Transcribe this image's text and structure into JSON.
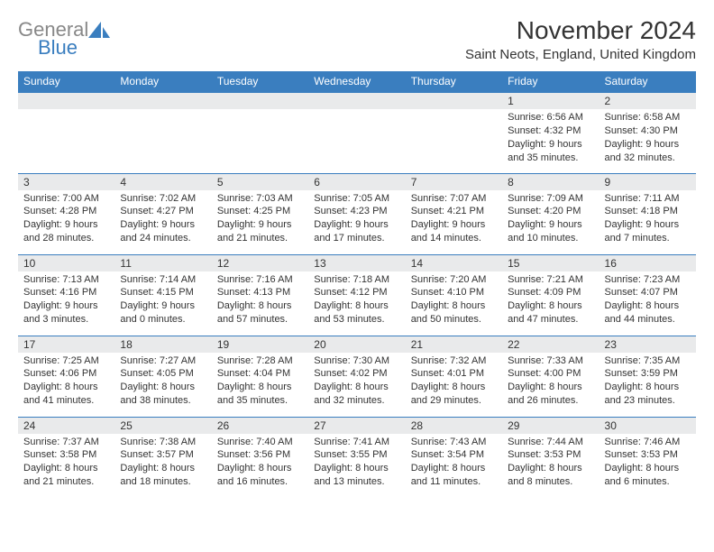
{
  "logo": {
    "word1": "General",
    "word2": "Blue",
    "gray_color": "#888888",
    "blue_color": "#3a7ebf"
  },
  "title": "November 2024",
  "location": "Saint Neots, England, United Kingdom",
  "colors": {
    "header_bg": "#3a7ebf",
    "header_text": "#ffffff",
    "daynum_bg": "#e9eaeb",
    "border": "#3a7ebf",
    "body_text": "#333333"
  },
  "weekdays": [
    "Sunday",
    "Monday",
    "Tuesday",
    "Wednesday",
    "Thursday",
    "Friday",
    "Saturday"
  ],
  "weeks": [
    [
      {
        "n": "",
        "sunrise": "",
        "sunset": "",
        "daylight": ""
      },
      {
        "n": "",
        "sunrise": "",
        "sunset": "",
        "daylight": ""
      },
      {
        "n": "",
        "sunrise": "",
        "sunset": "",
        "daylight": ""
      },
      {
        "n": "",
        "sunrise": "",
        "sunset": "",
        "daylight": ""
      },
      {
        "n": "",
        "sunrise": "",
        "sunset": "",
        "daylight": ""
      },
      {
        "n": "1",
        "sunrise": "Sunrise: 6:56 AM",
        "sunset": "Sunset: 4:32 PM",
        "daylight": "Daylight: 9 hours and 35 minutes."
      },
      {
        "n": "2",
        "sunrise": "Sunrise: 6:58 AM",
        "sunset": "Sunset: 4:30 PM",
        "daylight": "Daylight: 9 hours and 32 minutes."
      }
    ],
    [
      {
        "n": "3",
        "sunrise": "Sunrise: 7:00 AM",
        "sunset": "Sunset: 4:28 PM",
        "daylight": "Daylight: 9 hours and 28 minutes."
      },
      {
        "n": "4",
        "sunrise": "Sunrise: 7:02 AM",
        "sunset": "Sunset: 4:27 PM",
        "daylight": "Daylight: 9 hours and 24 minutes."
      },
      {
        "n": "5",
        "sunrise": "Sunrise: 7:03 AM",
        "sunset": "Sunset: 4:25 PM",
        "daylight": "Daylight: 9 hours and 21 minutes."
      },
      {
        "n": "6",
        "sunrise": "Sunrise: 7:05 AM",
        "sunset": "Sunset: 4:23 PM",
        "daylight": "Daylight: 9 hours and 17 minutes."
      },
      {
        "n": "7",
        "sunrise": "Sunrise: 7:07 AM",
        "sunset": "Sunset: 4:21 PM",
        "daylight": "Daylight: 9 hours and 14 minutes."
      },
      {
        "n": "8",
        "sunrise": "Sunrise: 7:09 AM",
        "sunset": "Sunset: 4:20 PM",
        "daylight": "Daylight: 9 hours and 10 minutes."
      },
      {
        "n": "9",
        "sunrise": "Sunrise: 7:11 AM",
        "sunset": "Sunset: 4:18 PM",
        "daylight": "Daylight: 9 hours and 7 minutes."
      }
    ],
    [
      {
        "n": "10",
        "sunrise": "Sunrise: 7:13 AM",
        "sunset": "Sunset: 4:16 PM",
        "daylight": "Daylight: 9 hours and 3 minutes."
      },
      {
        "n": "11",
        "sunrise": "Sunrise: 7:14 AM",
        "sunset": "Sunset: 4:15 PM",
        "daylight": "Daylight: 9 hours and 0 minutes."
      },
      {
        "n": "12",
        "sunrise": "Sunrise: 7:16 AM",
        "sunset": "Sunset: 4:13 PM",
        "daylight": "Daylight: 8 hours and 57 minutes."
      },
      {
        "n": "13",
        "sunrise": "Sunrise: 7:18 AM",
        "sunset": "Sunset: 4:12 PM",
        "daylight": "Daylight: 8 hours and 53 minutes."
      },
      {
        "n": "14",
        "sunrise": "Sunrise: 7:20 AM",
        "sunset": "Sunset: 4:10 PM",
        "daylight": "Daylight: 8 hours and 50 minutes."
      },
      {
        "n": "15",
        "sunrise": "Sunrise: 7:21 AM",
        "sunset": "Sunset: 4:09 PM",
        "daylight": "Daylight: 8 hours and 47 minutes."
      },
      {
        "n": "16",
        "sunrise": "Sunrise: 7:23 AM",
        "sunset": "Sunset: 4:07 PM",
        "daylight": "Daylight: 8 hours and 44 minutes."
      }
    ],
    [
      {
        "n": "17",
        "sunrise": "Sunrise: 7:25 AM",
        "sunset": "Sunset: 4:06 PM",
        "daylight": "Daylight: 8 hours and 41 minutes."
      },
      {
        "n": "18",
        "sunrise": "Sunrise: 7:27 AM",
        "sunset": "Sunset: 4:05 PM",
        "daylight": "Daylight: 8 hours and 38 minutes."
      },
      {
        "n": "19",
        "sunrise": "Sunrise: 7:28 AM",
        "sunset": "Sunset: 4:04 PM",
        "daylight": "Daylight: 8 hours and 35 minutes."
      },
      {
        "n": "20",
        "sunrise": "Sunrise: 7:30 AM",
        "sunset": "Sunset: 4:02 PM",
        "daylight": "Daylight: 8 hours and 32 minutes."
      },
      {
        "n": "21",
        "sunrise": "Sunrise: 7:32 AM",
        "sunset": "Sunset: 4:01 PM",
        "daylight": "Daylight: 8 hours and 29 minutes."
      },
      {
        "n": "22",
        "sunrise": "Sunrise: 7:33 AM",
        "sunset": "Sunset: 4:00 PM",
        "daylight": "Daylight: 8 hours and 26 minutes."
      },
      {
        "n": "23",
        "sunrise": "Sunrise: 7:35 AM",
        "sunset": "Sunset: 3:59 PM",
        "daylight": "Daylight: 8 hours and 23 minutes."
      }
    ],
    [
      {
        "n": "24",
        "sunrise": "Sunrise: 7:37 AM",
        "sunset": "Sunset: 3:58 PM",
        "daylight": "Daylight: 8 hours and 21 minutes."
      },
      {
        "n": "25",
        "sunrise": "Sunrise: 7:38 AM",
        "sunset": "Sunset: 3:57 PM",
        "daylight": "Daylight: 8 hours and 18 minutes."
      },
      {
        "n": "26",
        "sunrise": "Sunrise: 7:40 AM",
        "sunset": "Sunset: 3:56 PM",
        "daylight": "Daylight: 8 hours and 16 minutes."
      },
      {
        "n": "27",
        "sunrise": "Sunrise: 7:41 AM",
        "sunset": "Sunset: 3:55 PM",
        "daylight": "Daylight: 8 hours and 13 minutes."
      },
      {
        "n": "28",
        "sunrise": "Sunrise: 7:43 AM",
        "sunset": "Sunset: 3:54 PM",
        "daylight": "Daylight: 8 hours and 11 minutes."
      },
      {
        "n": "29",
        "sunrise": "Sunrise: 7:44 AM",
        "sunset": "Sunset: 3:53 PM",
        "daylight": "Daylight: 8 hours and 8 minutes."
      },
      {
        "n": "30",
        "sunrise": "Sunrise: 7:46 AM",
        "sunset": "Sunset: 3:53 PM",
        "daylight": "Daylight: 8 hours and 6 minutes."
      }
    ]
  ]
}
